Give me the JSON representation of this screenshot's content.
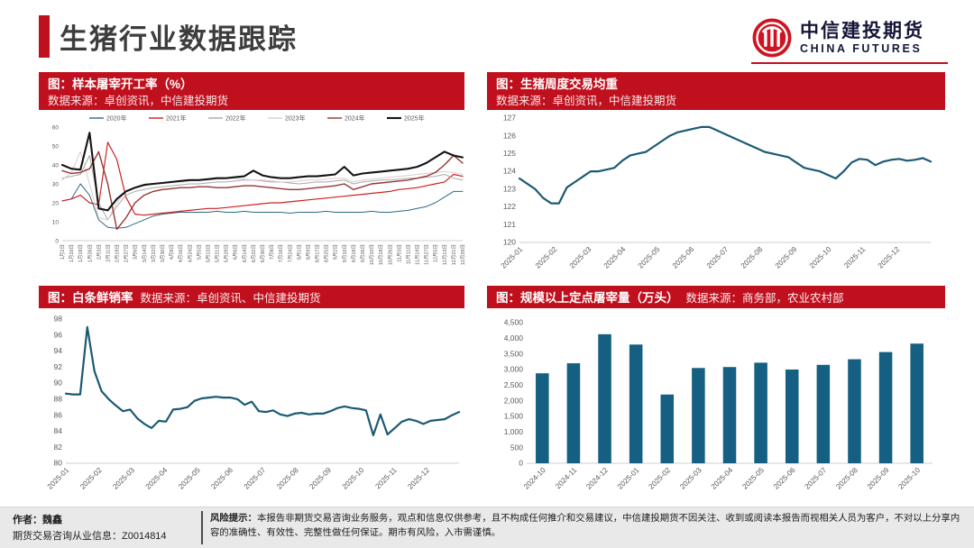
{
  "page": {
    "title": "生猪行业数据跟踪"
  },
  "logo": {
    "name_cn": "中信建投期货",
    "name_en": "CHINA FUTURES"
  },
  "colors": {
    "header_red": "#c0101e",
    "logo_red": "#cf1322",
    "accent_teal": "#156082",
    "title_gray": "#3d3d3d"
  },
  "panels": [
    {
      "title": "图：样本屠宰开工率（%）",
      "source": "数据来源：卓创资讯，中信建投期货"
    },
    {
      "title": "图：生猪周度交易均重",
      "source": "数据来源：卓创资讯，中信建投期货"
    },
    {
      "title": "图：白条鲜销率",
      "source": "数据来源：卓创资讯、中信建投期货"
    },
    {
      "title": "图：规模以上定点屠宰量（万头）",
      "source": "数据来源：商务部，农业农村部"
    }
  ],
  "footer": {
    "author_line1": "作者：魏鑫",
    "author_line2": "期货交易咨询从业信息：Z0014814",
    "risk_label": "风险提示：",
    "risk_text": "本报告非期货交易咨询业务服务，观点和信息仅供参考，且不构成任何推介和交易建议，中信建投期货不因关注、收到或阅读本报告而视相关人员为客户，不对以上分享内容的准确性、有效性、完整性做任何保证。期市有风险，入市需谨慎。"
  },
  "chart_data": [
    {
      "type": "line",
      "title": "样本屠宰开工率（%）",
      "xlabel": "",
      "ylabel": "",
      "ylim": [
        0,
        60
      ],
      "yticks": [
        "0",
        "10",
        "20",
        "30",
        "40",
        "50",
        "60"
      ],
      "grid": false,
      "legend_position": "top",
      "xrot": -90,
      "xfont": 5.5,
      "tickfont": 6.5,
      "xlabel_mode": "ends",
      "margins": {
        "l": 26,
        "r": 10,
        "t": 18,
        "b": 46
      },
      "categories": [
        "1月2日",
        "1月10日",
        "1月18日",
        "1月26日",
        "2月3日",
        "2月11日",
        "2月19日",
        "2月27日",
        "3月6日",
        "3月14日",
        "3月22日",
        "3月30日",
        "4月8日",
        "4月16日",
        "4月24日",
        "5月5日",
        "5月13日",
        "5月21日",
        "5月29日",
        "6月6日",
        "6月14日",
        "6月22日",
        "6月30日",
        "7月8日",
        "7月16日",
        "7月24日",
        "8月1日",
        "8月9日",
        "8月17日",
        "8月25日",
        "9月2日",
        "9月10日",
        "9月18日",
        "9月26日",
        "10月10日",
        "10月18日",
        "10月26日",
        "11月3日",
        "11月11日",
        "11月19日",
        "11月27日",
        "12月5日",
        "12月13日",
        "12月21日",
        "12月29日"
      ],
      "series": [
        {
          "name": "2020年",
          "color": "#2e6a85",
          "width": 1,
          "values": [
            21,
            22,
            30,
            24,
            11,
            7,
            6.5,
            7,
            9,
            11,
            13,
            14,
            14.5,
            15,
            15,
            15,
            15,
            15.5,
            15,
            15,
            15.5,
            15,
            15,
            15,
            15,
            14.5,
            15,
            15,
            15,
            15.5,
            15,
            15,
            15,
            15,
            15.5,
            15,
            15,
            15.5,
            16,
            17,
            18,
            20,
            23,
            26,
            26
          ]
        },
        {
          "name": "2021年",
          "color": "#cc2222",
          "width": 1.2,
          "values": [
            21,
            22,
            24,
            20,
            19,
            52,
            43,
            23,
            14,
            13.5,
            14,
            14.5,
            15,
            15.5,
            16,
            16.5,
            17,
            17,
            17.5,
            18,
            18.5,
            19,
            19.5,
            20,
            20,
            20.5,
            21,
            21.5,
            22,
            22.5,
            23,
            23.5,
            24,
            24.5,
            25,
            25.5,
            26,
            27,
            27.5,
            28,
            29,
            30,
            31,
            35,
            34
          ]
        },
        {
          "name": "2022年",
          "color": "#a9a9a9",
          "width": 1,
          "values": [
            33,
            34,
            35,
            45,
            20,
            11,
            18,
            24,
            26,
            27,
            28,
            28.5,
            29,
            29.5,
            30,
            30,
            30.5,
            31,
            31,
            31.5,
            32,
            32,
            31.5,
            31,
            31,
            30.5,
            30,
            30.5,
            31,
            31,
            31.5,
            32,
            30,
            31,
            31.5,
            32,
            32,
            32.5,
            33,
            33,
            33.5,
            34,
            35,
            33,
            32
          ]
        },
        {
          "name": "2023年",
          "color": "#ddcccc",
          "width": 1,
          "values": [
            32,
            36,
            47,
            30,
            12,
            11,
            20,
            26,
            28,
            29,
            30,
            30.5,
            31,
            31,
            31.5,
            32,
            32,
            32.5,
            33,
            33,
            32.5,
            32,
            32,
            31.5,
            31,
            31,
            31.5,
            32,
            32,
            32.5,
            33,
            33,
            31,
            32,
            32.5,
            33,
            33.5,
            34,
            34.5,
            35,
            35.5,
            36,
            36.5,
            36,
            35
          ]
        },
        {
          "name": "2024年",
          "color": "#943634",
          "width": 1.4,
          "values": [
            37,
            35.5,
            36,
            38,
            47,
            30,
            6,
            12,
            20,
            24,
            26,
            27,
            27.5,
            28,
            28,
            28.5,
            28.5,
            28,
            28,
            28.5,
            29,
            29,
            28.5,
            28,
            27.5,
            27,
            27,
            27.5,
            28,
            28.5,
            29,
            30,
            27,
            28.5,
            30,
            30.5,
            31,
            31.5,
            32,
            33,
            34,
            36,
            40,
            45,
            41
          ]
        },
        {
          "name": "2025年",
          "color": "#141414",
          "width": 2.1,
          "values": [
            40,
            38,
            37.5,
            57,
            17,
            16,
            22,
            26,
            28,
            29.5,
            30,
            30.5,
            31,
            31.5,
            32,
            32,
            32.5,
            33,
            33,
            33.5,
            34,
            37,
            34.5,
            33.5,
            33,
            33,
            33.5,
            34,
            34,
            34.5,
            35,
            39,
            34.5,
            35.5,
            36,
            36.5,
            37,
            37.5,
            38,
            39,
            41,
            44,
            47,
            45,
            44
          ]
        }
      ]
    },
    {
      "type": "line",
      "title": "生猪周度交易均重",
      "xlabel": "",
      "ylabel": "",
      "ylim": [
        120,
        127
      ],
      "yticks": [
        "120",
        "121",
        "122",
        "123",
        "124",
        "125",
        "126",
        "127"
      ],
      "grid": false,
      "color": "#1b5a73",
      "line_width": 2.2,
      "xrot": -45,
      "xfont": 8.2,
      "tickfont": 8.5,
      "xlabel_mode": "start",
      "margins": {
        "l": 36,
        "r": 16,
        "t": 8,
        "b": 44
      },
      "categories": [
        "2025-01",
        "2025-02",
        "2025-03",
        "2025-04",
        "2025-05",
        "2025-06",
        "2025-07",
        "2025-08",
        "2025-09",
        "2025-10",
        "2025-11",
        "2025-12"
      ],
      "values": [
        123.6,
        123.3,
        123.0,
        122.5,
        122.2,
        122.2,
        123.1,
        123.4,
        123.7,
        124.0,
        124.0,
        124.1,
        124.2,
        124.6,
        124.9,
        125.0,
        125.1,
        125.4,
        125.7,
        126.0,
        126.2,
        126.3,
        126.4,
        126.5,
        126.5,
        126.3,
        126.1,
        125.9,
        125.7,
        125.5,
        125.3,
        125.1,
        125.0,
        124.9,
        124.8,
        124.5,
        124.2,
        124.1,
        124.0,
        123.8,
        123.6,
        124.0,
        124.5,
        124.7,
        124.65,
        124.35,
        124.55,
        124.65,
        124.7,
        124.6,
        124.65,
        124.75,
        124.55
      ]
    },
    {
      "type": "line",
      "title": "白条鲜销率",
      "xlabel": "",
      "ylabel": "",
      "ylim": [
        80,
        98
      ],
      "yticks": [
        "80",
        "82",
        "84",
        "86",
        "88",
        "90",
        "92",
        "94",
        "96",
        "98"
      ],
      "grid": false,
      "color": "#1b5a73",
      "line_width": 2.2,
      "xrot": -45,
      "xfont": 8.2,
      "tickfont": 8.5,
      "xlabel_mode": "start",
      "margins": {
        "l": 30,
        "r": 14,
        "t": 10,
        "b": 48
      },
      "categories": [
        "2025-01",
        "2025-02",
        "2025-03",
        "2025-04",
        "2025-05",
        "2025-06",
        "2025-07",
        "2025-08",
        "2025-09",
        "2025-10",
        "2025-11",
        "2025-12"
      ],
      "values": [
        88.7,
        88.6,
        88.6,
        97.0,
        91.5,
        89.0,
        88.0,
        87.2,
        86.5,
        86.7,
        85.6,
        84.9,
        84.4,
        85.3,
        85.2,
        86.7,
        86.8,
        87.0,
        87.8,
        88.1,
        88.2,
        88.3,
        88.2,
        88.2,
        88.0,
        87.3,
        87.7,
        86.5,
        86.4,
        86.6,
        86.1,
        85.9,
        86.2,
        86.3,
        86.1,
        86.2,
        86.2,
        86.5,
        86.9,
        87.1,
        86.9,
        86.8,
        86.6,
        83.5,
        86.1,
        83.6,
        84.4,
        85.2,
        85.5,
        85.3,
        84.9,
        85.3,
        85.4,
        85.5,
        86.0,
        86.4
      ]
    },
    {
      "type": "bar",
      "title": "规模以上定点屠宰量（万头）",
      "xlabel": "",
      "ylabel": "",
      "ylim": [
        0,
        4500
      ],
      "yticks": [
        "0",
        "500",
        "1,000",
        "1,500",
        "2,000",
        "2,500",
        "3,000",
        "3,500",
        "4,000",
        "4,500"
      ],
      "grid": false,
      "color": "#156082",
      "xrot": -45,
      "xfont": 8.2,
      "tickfont": 8.5,
      "margins": {
        "l": 44,
        "r": 14,
        "t": 14,
        "b": 48
      },
      "categories": [
        "2024-10",
        "2024-11",
        "2024-12",
        "2025-01",
        "2025-02",
        "2025-03",
        "2025-04",
        "2025-05",
        "2025-06",
        "2025-07",
        "2025-08",
        "2025-09",
        "2025-10"
      ],
      "values": [
        2880,
        3200,
        4130,
        3800,
        2200,
        3050,
        3080,
        3220,
        3000,
        3150,
        3330,
        3560,
        3830
      ]
    }
  ]
}
